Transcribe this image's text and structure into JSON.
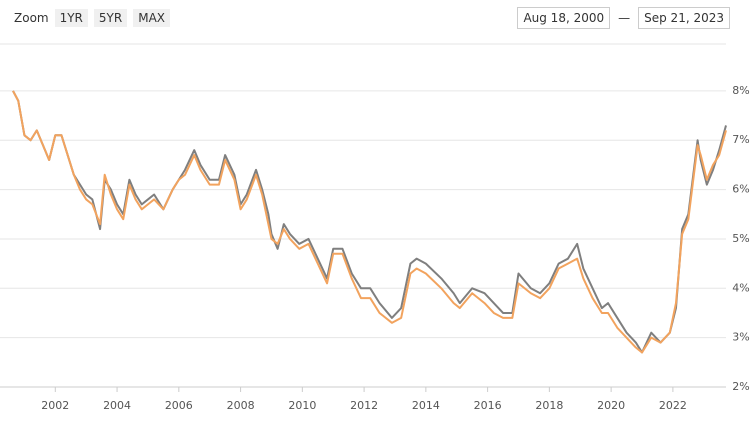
{
  "chart_data": {
    "type": "line",
    "zoom_label": "Zoom",
    "zoom_buttons": [
      "1YR",
      "5YR",
      "MAX"
    ],
    "range_start": "Aug 18, 2000",
    "range_separator": "—",
    "range_end": "Sep 21, 2023",
    "x": [
      2000.63,
      2000.8,
      2001.0,
      2001.2,
      2001.4,
      2001.6,
      2001.8,
      2002.0,
      2002.2,
      2002.4,
      2002.6,
      2002.8,
      2003.0,
      2003.2,
      2003.45,
      2003.6,
      2003.8,
      2004.0,
      2004.2,
      2004.4,
      2004.6,
      2004.8,
      2005.0,
      2005.2,
      2005.5,
      2005.8,
      2006.0,
      2006.2,
      2006.5,
      2006.7,
      2007.0,
      2007.3,
      2007.5,
      2007.8,
      2008.0,
      2008.2,
      2008.5,
      2008.7,
      2008.9,
      2009.0,
      2009.2,
      2009.4,
      2009.6,
      2009.9,
      2010.2,
      2010.5,
      2010.8,
      2011.0,
      2011.3,
      2011.6,
      2011.9,
      2012.2,
      2012.5,
      2012.9,
      2013.2,
      2013.5,
      2013.7,
      2014.0,
      2014.5,
      2014.9,
      2015.1,
      2015.5,
      2015.9,
      2016.2,
      2016.5,
      2016.8,
      2017.0,
      2017.4,
      2017.7,
      2018.0,
      2018.3,
      2018.6,
      2018.9,
      2019.1,
      2019.4,
      2019.7,
      2019.9,
      2020.2,
      2020.5,
      2020.8,
      2021.0,
      2021.3,
      2021.6,
      2021.9,
      2022.1,
      2022.3,
      2022.5,
      2022.8,
      2022.9,
      2023.1,
      2023.3,
      2023.5,
      2023.72
    ],
    "series": [
      {
        "color": "#7f7f7f",
        "values": [
          8.0,
          7.8,
          7.1,
          7.0,
          7.2,
          6.9,
          6.6,
          7.1,
          7.1,
          6.7,
          6.3,
          6.1,
          5.9,
          5.8,
          5.2,
          6.2,
          6.0,
          5.7,
          5.5,
          6.2,
          5.9,
          5.7,
          5.8,
          5.9,
          5.6,
          6.0,
          6.2,
          6.4,
          6.8,
          6.5,
          6.2,
          6.2,
          6.7,
          6.3,
          5.7,
          5.9,
          6.4,
          6.0,
          5.5,
          5.1,
          4.8,
          5.3,
          5.1,
          4.9,
          5.0,
          4.6,
          4.2,
          4.8,
          4.8,
          4.3,
          4.0,
          4.0,
          3.7,
          3.4,
          3.6,
          4.5,
          4.6,
          4.5,
          4.2,
          3.9,
          3.7,
          4.0,
          3.9,
          3.7,
          3.5,
          3.5,
          4.3,
          4.0,
          3.9,
          4.1,
          4.5,
          4.6,
          4.9,
          4.4,
          4.0,
          3.6,
          3.7,
          3.4,
          3.1,
          2.9,
          2.7,
          3.1,
          2.9,
          3.1,
          3.6,
          5.2,
          5.5,
          7.0,
          6.6,
          6.1,
          6.4,
          6.8,
          7.3
        ]
      },
      {
        "color": "#f2a35e",
        "values": [
          8.0,
          7.8,
          7.1,
          7.0,
          7.2,
          6.9,
          6.6,
          7.1,
          7.1,
          6.7,
          6.3,
          6.0,
          5.8,
          5.7,
          5.3,
          6.3,
          5.9,
          5.6,
          5.4,
          6.1,
          5.8,
          5.6,
          5.7,
          5.8,
          5.6,
          6.0,
          6.2,
          6.3,
          6.7,
          6.4,
          6.1,
          6.1,
          6.6,
          6.2,
          5.6,
          5.8,
          6.3,
          5.9,
          5.3,
          5.0,
          4.9,
          5.2,
          5.0,
          4.8,
          4.9,
          4.5,
          4.1,
          4.7,
          4.7,
          4.2,
          3.8,
          3.8,
          3.5,
          3.3,
          3.4,
          4.3,
          4.4,
          4.3,
          4.0,
          3.7,
          3.6,
          3.9,
          3.7,
          3.5,
          3.4,
          3.4,
          4.1,
          3.9,
          3.8,
          4.0,
          4.4,
          4.5,
          4.6,
          4.2,
          3.8,
          3.5,
          3.5,
          3.2,
          3.0,
          2.8,
          2.7,
          3.0,
          2.9,
          3.1,
          3.7,
          5.1,
          5.4,
          6.9,
          6.7,
          6.2,
          6.5,
          6.7,
          7.2
        ]
      }
    ],
    "xlim": [
      2000.63,
      2023.72
    ],
    "xticks": [
      2002,
      2004,
      2006,
      2008,
      2010,
      2012,
      2014,
      2016,
      2018,
      2020,
      2022
    ],
    "ylim": [
      2,
      8.95
    ],
    "yticks": [
      {
        "value": 2,
        "label": "2%"
      },
      {
        "value": 3,
        "label": "3%"
      },
      {
        "value": 4,
        "label": "4%"
      },
      {
        "value": 5,
        "label": "5%"
      },
      {
        "value": 6,
        "label": "6%"
      },
      {
        "value": 7,
        "label": "7%"
      },
      {
        "value": 8,
        "label": "8%"
      }
    ],
    "grid": true
  }
}
